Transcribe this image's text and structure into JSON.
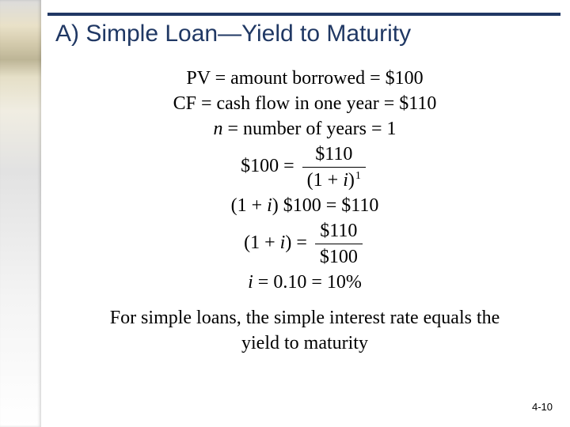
{
  "colors": {
    "heading": "#203864",
    "rule": "#203864",
    "body_text": "#000000",
    "pagenum": "#000000",
    "background": "#ffffff"
  },
  "heading": "A) Simple Loan—Yield to Maturity",
  "lines": {
    "l1a": "PV = amount borrowed = $100",
    "l2a": "CF = cash flow in one year = $110",
    "l3_lhs_var": "n",
    "l3_rest": " = number of years = 1",
    "l4_lhs": "$100 = ",
    "l4_num": "$110",
    "l4_den_open": "(1 + ",
    "l4_den_var": "i",
    "l4_den_close": ")",
    "l4_exp": "1",
    "l5_open": "(1 + ",
    "l5_var": "i",
    "l5_close": ") $100 = $110",
    "l6_open": "(1 + ",
    "l6_var": "i",
    "l6_mid": ") = ",
    "l6_num": "$110",
    "l6_den": "$100",
    "l7_var": "i",
    "l7_rest": " = 0.10 = 10%"
  },
  "closing_line1": "For simple loans, the simple interest rate equals the",
  "closing_line2": "yield to maturity",
  "pagenum": "4-10",
  "fonts": {
    "heading_size_pt": 30,
    "body_size_pt": 24,
    "heading_family": "Arial",
    "body_family": "Times New Roman"
  }
}
